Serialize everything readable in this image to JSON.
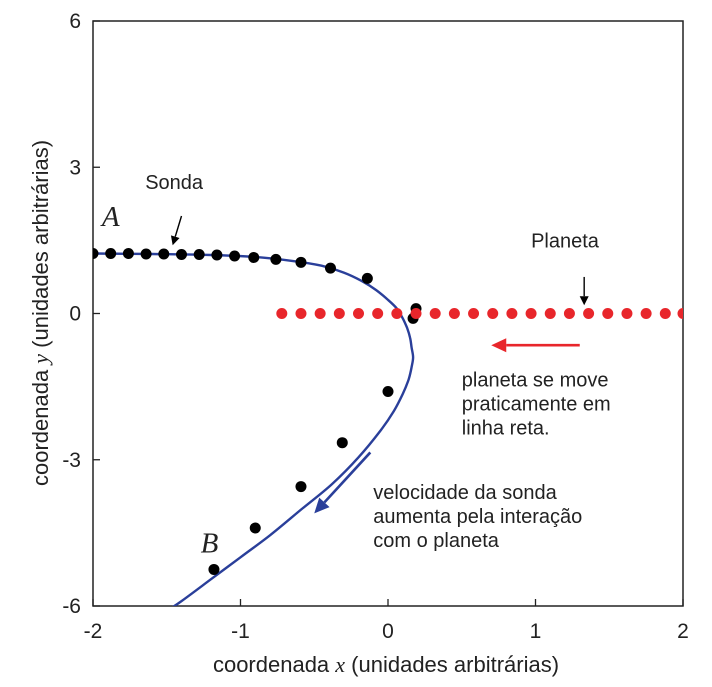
{
  "chart_data": {
    "type": "scatter",
    "xlabel": {
      "prefix": "coordenada ",
      "var": "x",
      "suffix": " (unidades arbitrárias)"
    },
    "ylabel": {
      "prefix": "coordenada ",
      "var": "y",
      "suffix": " (unidades arbitrárias)"
    },
    "xlim": [
      -2,
      2
    ],
    "ylim": [
      -6,
      6
    ],
    "xticks": [
      -2,
      -1,
      0,
      1,
      2
    ],
    "yticks": [
      -6,
      -3,
      0,
      3,
      6
    ],
    "xtick_labels": [
      "-2",
      "-1",
      "0",
      "1",
      "2"
    ],
    "ytick_labels": [
      "-6",
      "-3",
      "0",
      "3",
      "6"
    ],
    "grid": false,
    "legend": "none",
    "series": [
      {
        "name": "Sonda",
        "color": "#000000",
        "x": [
          -2.0,
          -1.88,
          -1.76,
          -1.64,
          -1.52,
          -1.4,
          -1.28,
          -1.16,
          -1.04,
          -0.91,
          -0.76,
          -0.59,
          -0.39,
          -0.14,
          0.19,
          0.17,
          0.0,
          -0.31,
          -0.59,
          -0.9,
          -1.18
        ],
        "y": [
          1.23,
          1.23,
          1.23,
          1.22,
          1.22,
          1.21,
          1.21,
          1.2,
          1.18,
          1.15,
          1.11,
          1.05,
          0.93,
          0.72,
          0.1,
          -0.1,
          -1.6,
          -2.65,
          -3.55,
          -4.4,
          -5.25
        ]
      },
      {
        "name": "Planeta",
        "color": "#e8262b",
        "x": [
          -0.72,
          -0.59,
          -0.46,
          -0.33,
          -0.2,
          -0.07,
          0.06,
          0.19,
          0.32,
          0.45,
          0.58,
          0.71,
          0.84,
          0.97,
          1.1,
          1.23,
          1.36,
          1.49,
          1.62,
          1.75,
          1.88,
          2.0
        ],
        "y": [
          0,
          0,
          0,
          0,
          0,
          0,
          0,
          0,
          0,
          0,
          0,
          0,
          0,
          0,
          0,
          0,
          0,
          0,
          0,
          0,
          0,
          0
        ]
      }
    ],
    "trajectory": {
      "color": "#2a3f9a",
      "x": [
        -2.0,
        -1.6,
        -1.2,
        -0.9,
        -0.65,
        -0.45,
        -0.3,
        -0.18,
        -0.08,
        0.0,
        0.06,
        0.1,
        0.13,
        0.15,
        0.16,
        0.17,
        0.16,
        0.14,
        0.1,
        0.04,
        -0.05,
        -0.2,
        -0.38,
        -0.58,
        -0.8,
        -1.0,
        -1.2,
        -1.4,
        -1.5
      ],
      "y": [
        1.23,
        1.22,
        1.2,
        1.16,
        1.08,
        0.98,
        0.84,
        0.67,
        0.48,
        0.28,
        0.1,
        -0.1,
        -0.3,
        -0.5,
        -0.7,
        -0.9,
        -1.1,
        -1.35,
        -1.65,
        -2.0,
        -2.4,
        -2.95,
        -3.5,
        -4.0,
        -4.55,
        -5.0,
        -5.45,
        -5.9,
        -6.1
      ]
    },
    "annotations": [
      {
        "id": "sonda",
        "text": "Sonda",
        "x": -1.45,
        "y": 2.55
      },
      {
        "id": "planeta",
        "text": "Planeta",
        "x": 1.2,
        "y": 1.35
      },
      {
        "id": "A",
        "text": "A",
        "x": -1.94,
        "y": 1.8
      },
      {
        "id": "B",
        "text": "B",
        "x": -1.27,
        "y": -4.9
      },
      {
        "id": "planet_note",
        "lines": [
          "planeta se move",
          "praticamente em",
          "linha reta."
        ],
        "x": 0.5,
        "y": -1.5
      },
      {
        "id": "probe_note",
        "lines": [
          "velocidade da sonda",
          "aumenta pela interação",
          "com o planeta"
        ],
        "x": -0.1,
        "y": -3.8
      }
    ],
    "arrows": [
      {
        "id": "planet_dir",
        "color": "#e8262b",
        "from": [
          1.3,
          -0.65
        ],
        "to": [
          0.7,
          -0.65
        ]
      },
      {
        "id": "probe_dir",
        "color": "#2a3f9a",
        "from": [
          -0.12,
          -2.85
        ],
        "to": [
          -0.5,
          -4.1
        ]
      },
      {
        "id": "sonda_ptr",
        "color": "#000000",
        "from": [
          -1.4,
          2.0
        ],
        "to": [
          -1.46,
          1.4
        ]
      },
      {
        "id": "planeta_ptr",
        "color": "#000000",
        "from": [
          1.33,
          0.75
        ],
        "to": [
          1.33,
          0.17
        ]
      }
    ]
  }
}
